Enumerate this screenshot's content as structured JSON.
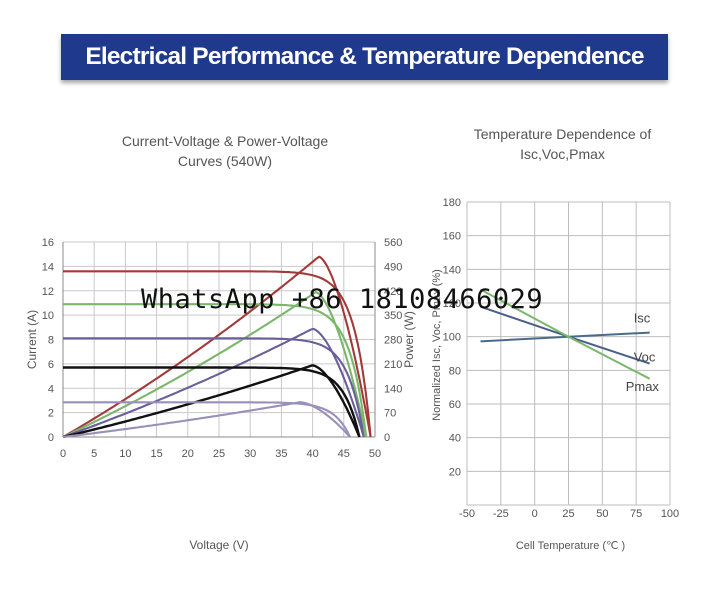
{
  "header": {
    "title": "Electrical Performance & Temperature Dependence"
  },
  "watermark": "WhatsApp +86 18108466029",
  "chart_data": [
    {
      "type": "line",
      "title": "Current-Voltage & Power-Voltage Curves (540W)",
      "title_lines": [
        "Current-Voltage & Power-Voltage",
        "Curves (540W)"
      ],
      "xlabel": "Voltage (V)",
      "ylabel": "Current (A)",
      "y2label": "Power (W)",
      "xlim": [
        0,
        50
      ],
      "ylim": [
        0,
        16
      ],
      "y2lim": [
        0,
        560
      ],
      "xticks": [
        "0",
        "5",
        "10",
        "15",
        "20",
        "25",
        "30",
        "35",
        "40",
        "45",
        "50"
      ],
      "yticks": [
        "0",
        "2",
        "4",
        "6",
        "8",
        "10",
        "12",
        "14",
        "16"
      ],
      "y2ticks": [
        "0",
        "70",
        "140",
        "210",
        "280",
        "350",
        "420",
        "490",
        "560"
      ],
      "grid": true,
      "series": [
        {
          "kind": "iv",
          "color": "#a33a3a",
          "isc": 13.6,
          "voc": 49.3,
          "vmp": 41.5,
          "imp": 13.0
        },
        {
          "kind": "pv",
          "color": "#a33a3a",
          "pmax": 518,
          "vmp": 41.0,
          "voc": 49.3
        },
        {
          "kind": "iv",
          "color": "#7bb76b",
          "isc": 10.9,
          "voc": 48.6,
          "vmp": 41.0,
          "imp": 10.3
        },
        {
          "kind": "pv",
          "color": "#7bb76b",
          "pmax": 416,
          "vmp": 40.5,
          "voc": 48.6
        },
        {
          "kind": "iv",
          "color": "#6a5f9a",
          "isc": 8.1,
          "voc": 48.2,
          "vmp": 40.5,
          "imp": 7.7
        },
        {
          "kind": "pv",
          "color": "#6a5f9a",
          "pmax": 311,
          "vmp": 40.0,
          "voc": 48.2
        },
        {
          "kind": "iv",
          "color": "#111111",
          "isc": 5.7,
          "voc": 47.5,
          "vmp": 40.0,
          "imp": 5.4
        },
        {
          "kind": "pv",
          "color": "#111111",
          "pmax": 206,
          "vmp": 40.0,
          "voc": 47.5
        },
        {
          "kind": "iv",
          "color": "#9a8fb8",
          "isc": 2.85,
          "voc": 46.0,
          "vmp": 38.5,
          "imp": 2.7
        },
        {
          "kind": "pv",
          "color": "#9a8fb8",
          "pmax": 100,
          "vmp": 38.0,
          "voc": 46.0
        }
      ]
    },
    {
      "type": "line",
      "title": "Temperature Dependence of Isc,Voc,Pmax",
      "title_lines": [
        "Temperature Dependence of",
        "Isc,Voc,Pmax"
      ],
      "xlabel": "Cell Temperature (℃ )",
      "ylabel": "Normalized Isc, Voc, Pmax (%)",
      "xlim": [
        -50,
        100
      ],
      "ylim": [
        0,
        180
      ],
      "xticks": [
        "-50",
        "-25",
        "0",
        "25",
        "50",
        "75",
        "100"
      ],
      "yticks": [
        "20",
        "40",
        "60",
        "80",
        "100",
        "120",
        "140",
        "160",
        "180"
      ],
      "grid": true,
      "series": [
        {
          "name": "Isc",
          "color": "#4a6a8c",
          "x": [
            -40,
            25,
            85
          ],
          "y": [
            97.2,
            100,
            102.4
          ]
        },
        {
          "name": "Voc",
          "color": "#4a5f88",
          "x": [
            -40,
            25,
            85
          ],
          "y": [
            117.8,
            100,
            84
          ]
        },
        {
          "name": "Pmax",
          "color": "#7bb76b",
          "x": [
            -40,
            25,
            85
          ],
          "y": [
            128,
            100,
            75
          ]
        }
      ]
    }
  ]
}
